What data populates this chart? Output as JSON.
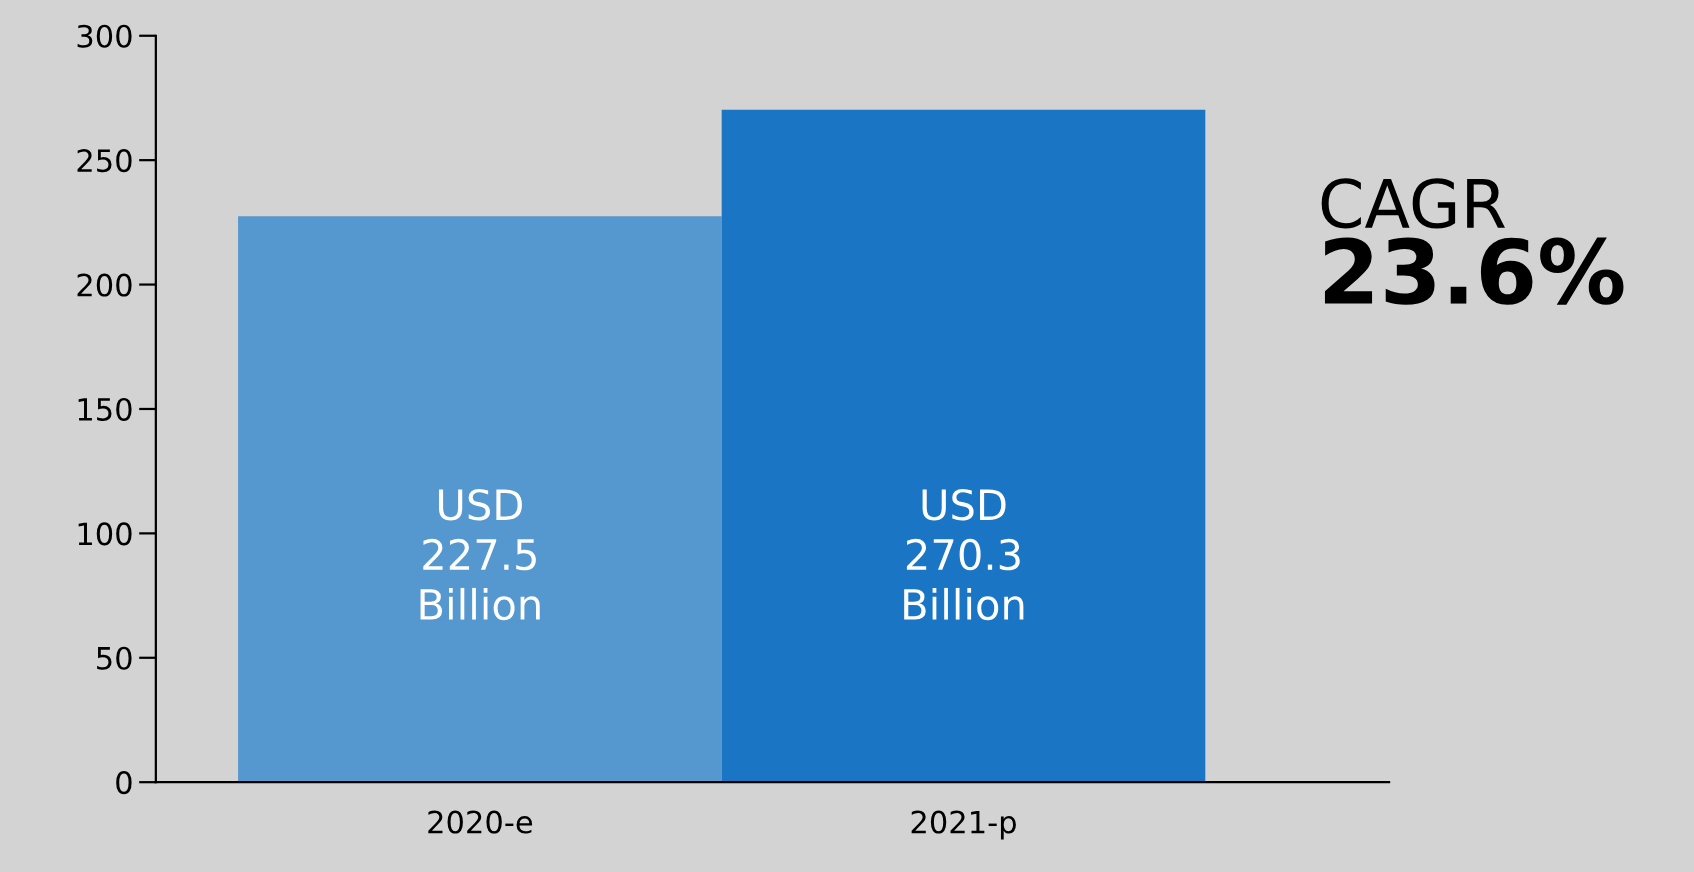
{
  "chart_data": {
    "type": "bar",
    "categories": [
      "2020-e",
      "2021-p"
    ],
    "values": [
      227.5,
      270.3
    ],
    "colors": [
      "#5597cf",
      "#1a76c5"
    ],
    "value_labels": [
      "USD\n227.5\nBillion",
      "USD\n270.3\nBillion"
    ],
    "ylim": [
      0,
      300
    ],
    "yticks": [
      0,
      50,
      100,
      150,
      200,
      250,
      300
    ],
    "grid": false,
    "legend": false,
    "annotations": [
      "CAGR",
      "23.6%"
    ]
  }
}
